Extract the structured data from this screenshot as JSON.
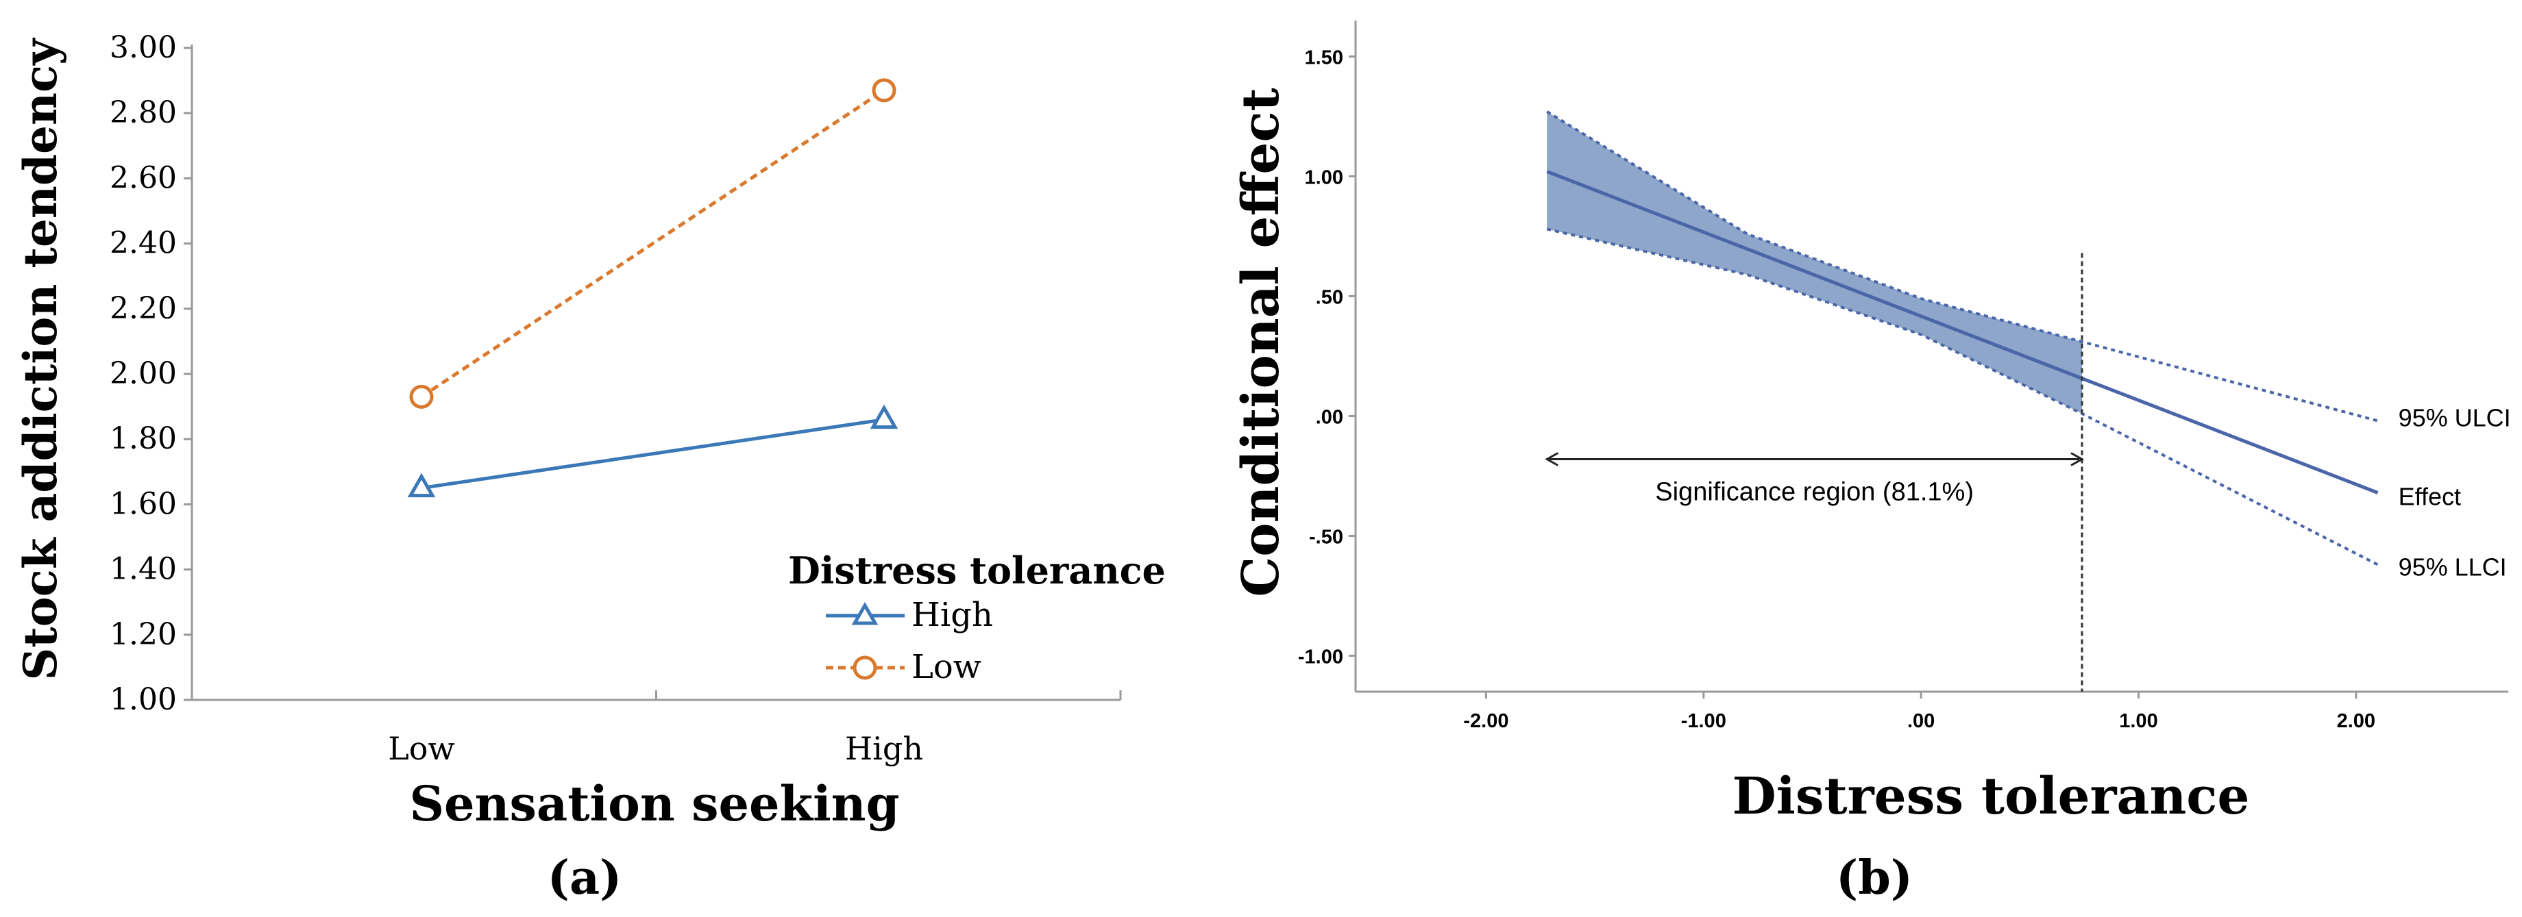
{
  "chart_data": [
    {
      "type": "line",
      "panel_label": "(a)",
      "xlabel": "Sensation seeking",
      "ylabel": "Stock addiction tendency",
      "categories": [
        "Low",
        "High"
      ],
      "ylim": [
        1.0,
        3.0
      ],
      "yticks": [
        "1.00",
        "1.20",
        "1.40",
        "1.60",
        "1.80",
        "2.00",
        "2.20",
        "2.40",
        "2.60",
        "2.80",
        "3.00"
      ],
      "legend_title": "Distress tolerance",
      "legend_position": "bottom-right",
      "series": [
        {
          "name": "High",
          "values": [
            1.65,
            1.86
          ],
          "color": "#3b78b8",
          "marker": "triangle",
          "dash": "solid"
        },
        {
          "name": "Low",
          "values": [
            1.93,
            2.87
          ],
          "color": "#d9792e",
          "marker": "circle",
          "dash": "dashed"
        }
      ]
    },
    {
      "type": "line",
      "panel_label": "(b)",
      "xlabel": "Distress tolerance",
      "ylabel": "Conditional effect",
      "xlim": [
        -2.6,
        2.7
      ],
      "ylim": [
        -1.15,
        1.65
      ],
      "xticks": [
        "-2.00",
        "-1.00",
        ".00",
        "1.00",
        "2.00"
      ],
      "yticks": [
        "-1.00",
        "-.50",
        ".00",
        ".50",
        "1.00",
        "1.50"
      ],
      "color": "#4a66a8",
      "band_color": "#8da6c9",
      "series": [
        {
          "name": "Effect",
          "x": [
            -1.72,
            2.1
          ],
          "values": [
            1.02,
            -0.32
          ]
        },
        {
          "name": "95% ULCI",
          "x": [
            -1.72,
            -0.8,
            0.0,
            0.74,
            2.1
          ],
          "values": [
            1.27,
            0.76,
            0.49,
            0.31,
            -0.02
          ]
        },
        {
          "name": "95% LLCI",
          "x": [
            -1.72,
            -0.8,
            0.0,
            0.74,
            2.1
          ],
          "values": [
            0.78,
            0.59,
            0.34,
            0.01,
            -0.62
          ]
        }
      ],
      "shaded_range": [
        -1.72,
        0.74
      ],
      "vline_x": 0.74,
      "annotation": "Significance region (81.1%)",
      "annotation_arrow": [
        -1.72,
        0.74
      ],
      "annotation_y": -0.18
    }
  ]
}
